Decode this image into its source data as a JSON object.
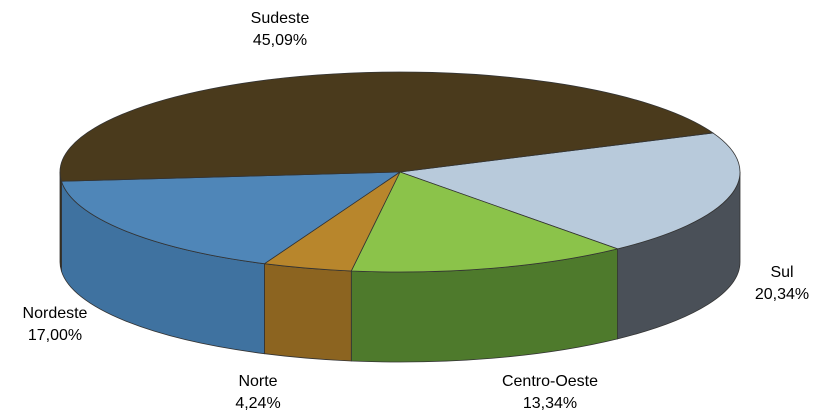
{
  "chart_data": {
    "type": "pie3d",
    "categories": [
      "Sul",
      "Centro-Oeste",
      "Norte",
      "Nordeste",
      "Sudeste"
    ],
    "values": [
      20.34,
      13.34,
      4.24,
      17.0,
      45.09
    ],
    "value_labels": [
      "20,34%",
      "13,34%",
      "4,24%",
      "17,00%",
      "45,09%"
    ],
    "colors": [
      "#b8cadb",
      "#8bc34a",
      "#b8862c",
      "#4f86b8",
      "#4a3a1c"
    ],
    "side_colors": [
      "#4a5058",
      "#4e7a2c",
      "#8c6420",
      "#3f72a0",
      "#3a2d15"
    ]
  }
}
